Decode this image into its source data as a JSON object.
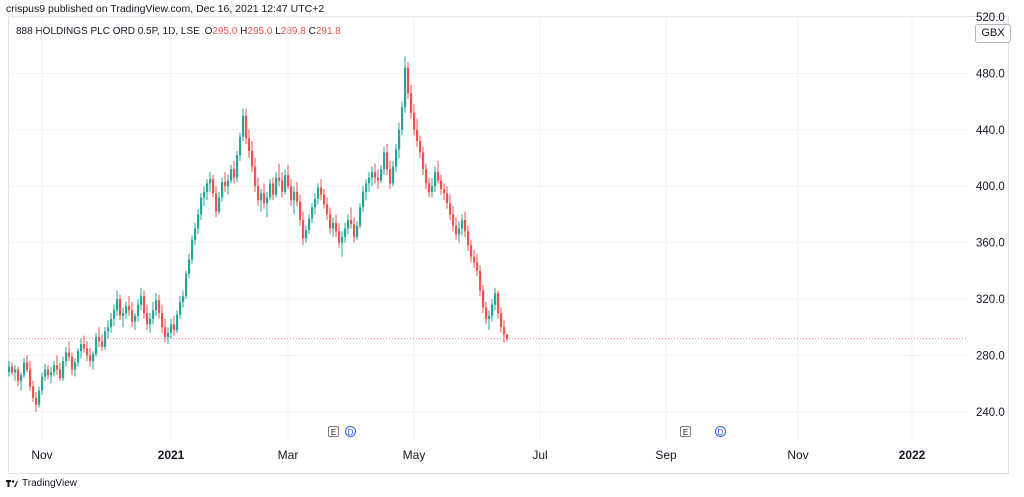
{
  "header": {
    "published_by": "crispus9 published on TradingView.com, Dec 16, 2021 12:47 UTC+2"
  },
  "legend": {
    "symbol": "888 HOLDINGS PLC ORD 0.5P, 1D, LSE",
    "open_label": "O",
    "open": "295.0",
    "high_label": "H",
    "high": "295.0",
    "low_label": "L",
    "low": "289.8",
    "close_label": "C",
    "close": "291.8"
  },
  "currency_button": "GBX",
  "events": {
    "earnings_label": "E",
    "dividend_label": "D"
  },
  "footer": {
    "brand": "TradingView"
  },
  "colors": {
    "up": "#26a69a",
    "down": "#ef5350",
    "price_line": "#ef5350",
    "grid": "#f0f3fa",
    "axis_text": "#131722"
  },
  "chart_data": {
    "type": "candlestick",
    "title": "888 HOLDINGS PLC ORD 0.5P, 1D, LSE",
    "xlabel": "",
    "ylabel": "",
    "ylim": [
      220,
      520
    ],
    "y_ticks": [
      240,
      280,
      320,
      360,
      400,
      440,
      480,
      520
    ],
    "y_tick_labels": [
      "240.0",
      "280.0",
      "320.0",
      "360.0",
      "400.0",
      "440.0",
      "480.0",
      "520.0"
    ],
    "x_ticks": [
      {
        "label": "Nov",
        "i": 11
      },
      {
        "label": "2021",
        "i": 54,
        "bold": true
      },
      {
        "label": "Mar",
        "i": 93
      },
      {
        "label": "May",
        "i": 135
      },
      {
        "label": "Jul",
        "i": 177
      },
      {
        "label": "Sep",
        "i": 219
      },
      {
        "label": "Nov",
        "i": 263
      },
      {
        "label": "2022",
        "i": 301,
        "bold": true
      }
    ],
    "last_close": 291.8,
    "grid": true,
    "series": [
      {
        "points": [
          [
            268,
            276,
            265,
            272
          ],
          [
            272,
            275,
            266,
            268
          ],
          [
            268,
            273,
            262,
            270
          ],
          [
            270,
            272,
            258,
            262
          ],
          [
            262,
            268,
            255,
            266
          ],
          [
            266,
            278,
            264,
            275
          ],
          [
            275,
            280,
            268,
            270
          ],
          [
            270,
            276,
            255,
            258
          ],
          [
            258,
            262,
            247,
            250
          ],
          [
            250,
            254,
            240,
            245
          ],
          [
            245,
            258,
            243,
            255
          ],
          [
            255,
            268,
            252,
            265
          ],
          [
            265,
            274,
            262,
            270
          ],
          [
            270,
            273,
            263,
            266
          ],
          [
            266,
            272,
            260,
            268
          ],
          [
            268,
            276,
            265,
            273
          ],
          [
            273,
            280,
            266,
            270
          ],
          [
            270,
            275,
            262,
            264
          ],
          [
            264,
            279,
            262,
            276
          ],
          [
            276,
            286,
            272,
            282
          ],
          [
            282,
            290,
            276,
            279
          ],
          [
            279,
            282,
            266,
            270
          ],
          [
            270,
            278,
            265,
            275
          ],
          [
            275,
            285,
            272,
            283
          ],
          [
            283,
            292,
            278,
            288
          ],
          [
            288,
            294,
            282,
            285
          ],
          [
            285,
            290,
            276,
            280
          ],
          [
            280,
            285,
            272,
            276
          ],
          [
            276,
            283,
            270,
            281
          ],
          [
            281,
            296,
            279,
            293
          ],
          [
            293,
            300,
            286,
            290
          ],
          [
            290,
            295,
            283,
            286
          ],
          [
            286,
            300,
            284,
            297
          ],
          [
            297,
            305,
            292,
            300
          ],
          [
            300,
            310,
            296,
            306
          ],
          [
            306,
            316,
            301,
            312
          ],
          [
            312,
            326,
            308,
            320
          ],
          [
            320,
            323,
            305,
            308
          ],
          [
            308,
            314,
            300,
            310
          ],
          [
            310,
            318,
            306,
            315
          ],
          [
            315,
            322,
            308,
            312
          ],
          [
            312,
            318,
            300,
            304
          ],
          [
            304,
            310,
            298,
            308
          ],
          [
            308,
            320,
            304,
            316
          ],
          [
            316,
            328,
            312,
            322
          ],
          [
            322,
            326,
            306,
            310
          ],
          [
            310,
            316,
            298,
            302
          ],
          [
            302,
            310,
            296,
            306
          ],
          [
            306,
            318,
            302,
            312
          ],
          [
            312,
            324,
            308,
            319
          ],
          [
            319,
            323,
            306,
            310
          ],
          [
            310,
            316,
            296,
            300
          ],
          [
            300,
            306,
            289,
            293
          ],
          [
            293,
            300,
            288,
            296
          ],
          [
            296,
            306,
            292,
            302
          ],
          [
            302,
            308,
            294,
            298
          ],
          [
            298,
            312,
            296,
            309
          ],
          [
            309,
            322,
            306,
            318
          ],
          [
            318,
            326,
            314,
            322
          ],
          [
            322,
            340,
            320,
            338
          ],
          [
            338,
            352,
            335,
            348
          ],
          [
            348,
            365,
            345,
            362
          ],
          [
            362,
            374,
            358,
            370
          ],
          [
            370,
            384,
            366,
            380
          ],
          [
            380,
            395,
            376,
            392
          ],
          [
            392,
            400,
            386,
            396
          ],
          [
            396,
            405,
            390,
            402
          ],
          [
            402,
            410,
            396,
            405
          ],
          [
            405,
            408,
            392,
            395
          ],
          [
            395,
            400,
            378,
            382
          ],
          [
            382,
            396,
            380,
            392
          ],
          [
            392,
            406,
            389,
            403
          ],
          [
            403,
            410,
            396,
            400
          ],
          [
            400,
            408,
            394,
            404
          ],
          [
            404,
            415,
            402,
            412
          ],
          [
            412,
            418,
            402,
            406
          ],
          [
            406,
            425,
            403,
            422
          ],
          [
            422,
            438,
            418,
            435
          ],
          [
            435,
            455,
            432,
            450
          ],
          [
            450,
            455,
            430,
            434
          ],
          [
            434,
            440,
            420,
            425
          ],
          [
            425,
            432,
            410,
            414
          ],
          [
            414,
            420,
            396,
            400
          ],
          [
            400,
            406,
            386,
            390
          ],
          [
            390,
            398,
            382,
            395
          ],
          [
            395,
            402,
            384,
            388
          ],
          [
            388,
            396,
            378,
            392
          ],
          [
            392,
            405,
            390,
            402
          ],
          [
            402,
            406,
            390,
            394
          ],
          [
            394,
            410,
            392,
            406
          ],
          [
            406,
            416,
            400,
            404
          ],
          [
            404,
            410,
            392,
            396
          ],
          [
            396,
            412,
            394,
            408
          ],
          [
            408,
            415,
            398,
            400
          ],
          [
            400,
            405,
            386,
            390
          ],
          [
            390,
            400,
            380,
            396
          ],
          [
            396,
            403,
            386,
            389
          ],
          [
            389,
            394,
            372,
            376
          ],
          [
            376,
            382,
            358,
            363
          ],
          [
            363,
            372,
            360,
            369
          ],
          [
            369,
            380,
            366,
            377
          ],
          [
            377,
            388,
            374,
            385
          ],
          [
            385,
            395,
            380,
            391
          ],
          [
            391,
            402,
            387,
            399
          ],
          [
            399,
            405,
            390,
            394
          ],
          [
            394,
            398,
            384,
            387
          ],
          [
            387,
            392,
            376,
            380
          ],
          [
            380,
            385,
            366,
            370
          ],
          [
            370,
            378,
            364,
            374
          ],
          [
            374,
            380,
            364,
            368
          ],
          [
            368,
            374,
            356,
            360
          ],
          [
            360,
            368,
            350,
            364
          ],
          [
            364,
            374,
            360,
            370
          ],
          [
            370,
            380,
            366,
            376
          ],
          [
            376,
            385,
            370,
            373
          ],
          [
            373,
            378,
            360,
            364
          ],
          [
            364,
            375,
            362,
            372
          ],
          [
            372,
            388,
            370,
            385
          ],
          [
            385,
            400,
            382,
            396
          ],
          [
            396,
            405,
            390,
            402
          ],
          [
            402,
            410,
            396,
            406
          ],
          [
            406,
            414,
            400,
            410
          ],
          [
            410,
            416,
            402,
            406
          ],
          [
            406,
            412,
            398,
            404
          ],
          [
            404,
            415,
            402,
            412
          ],
          [
            412,
            428,
            408,
            424
          ],
          [
            424,
            430,
            408,
            412
          ],
          [
            412,
            418,
            398,
            402
          ],
          [
            402,
            418,
            400,
            414
          ],
          [
            414,
            430,
            410,
            426
          ],
          [
            426,
            445,
            420,
            440
          ],
          [
            440,
            460,
            436,
            456
          ],
          [
            456,
            492,
            452,
            484
          ],
          [
            484,
            488,
            462,
            466
          ],
          [
            466,
            472,
            448,
            452
          ],
          [
            452,
            458,
            436,
            440
          ],
          [
            440,
            448,
            428,
            432
          ],
          [
            432,
            436,
            420,
            424
          ],
          [
            424,
            428,
            408,
            412
          ],
          [
            412,
            416,
            398,
            402
          ],
          [
            402,
            406,
            392,
            396
          ],
          [
            396,
            406,
            392,
            400
          ],
          [
            400,
            414,
            396,
            410
          ],
          [
            410,
            418,
            402,
            404
          ],
          [
            404,
            408,
            394,
            398
          ],
          [
            398,
            402,
            390,
            395
          ],
          [
            395,
            400,
            384,
            388
          ],
          [
            388,
            394,
            376,
            380
          ],
          [
            380,
            386,
            368,
            372
          ],
          [
            372,
            378,
            362,
            366
          ],
          [
            366,
            375,
            360,
            370
          ],
          [
            370,
            380,
            365,
            376
          ],
          [
            376,
            382,
            364,
            368
          ],
          [
            368,
            372,
            354,
            358
          ],
          [
            358,
            362,
            346,
            350
          ],
          [
            350,
            355,
            342,
            346
          ],
          [
            346,
            352,
            336,
            340
          ],
          [
            340,
            344,
            322,
            326
          ],
          [
            326,
            330,
            310,
            314
          ],
          [
            314,
            318,
            302,
            306
          ],
          [
            306,
            312,
            298,
            308
          ],
          [
            308,
            320,
            304,
            316
          ],
          [
            316,
            328,
            312,
            324
          ],
          [
            324,
            326,
            306,
            310
          ],
          [
            310,
            314,
            296,
            300
          ],
          [
            300,
            305,
            289,
            295
          ],
          [
            295,
            295,
            289.8,
            291.8
          ]
        ]
      }
    ]
  }
}
